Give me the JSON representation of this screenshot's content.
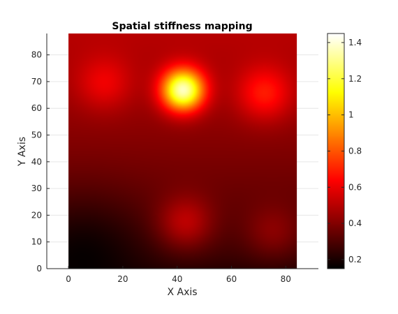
{
  "chart_data": {
    "type": "heatmap",
    "title": "Spatial stiffness mapping",
    "xlabel": "X Axis",
    "ylabel": "Y Axis",
    "xlim": [
      -8,
      92
    ],
    "ylim": [
      0,
      88
    ],
    "xticks": [
      0,
      20,
      40,
      60,
      80
    ],
    "yticks": [
      0,
      10,
      20,
      30,
      40,
      50,
      60,
      70,
      80
    ],
    "grid": true,
    "data_extent": {
      "x": [
        0,
        84
      ],
      "y": [
        0,
        88
      ]
    },
    "colormap": "hot",
    "colorbar": {
      "range": [
        0.15,
        1.45
      ],
      "ticks": [
        0.2,
        0.4,
        0.6,
        0.8,
        1,
        1.2,
        1.4
      ],
      "tick_labels": [
        "0.2",
        "0.4",
        "0.6",
        "0.8",
        "1",
        "1.2",
        "1.4"
      ]
    },
    "field": {
      "background_top": 0.5,
      "background_bottom": 0.22,
      "dark_corner": {
        "x": 5,
        "y": 2,
        "value": 0.16
      },
      "hotspots": [
        {
          "x": 13,
          "y": 70,
          "peak": 0.62
        },
        {
          "x": 42,
          "y": 67,
          "peak": 1.42
        },
        {
          "x": 72,
          "y": 66,
          "peak": 0.7
        },
        {
          "x": 43,
          "y": 18,
          "peak": 0.52
        },
        {
          "x": 75,
          "y": 15,
          "peak": 0.42
        }
      ]
    }
  },
  "colors": {
    "grid": "#e6e6e6",
    "axis": "#262626",
    "background": "#ffffff"
  }
}
